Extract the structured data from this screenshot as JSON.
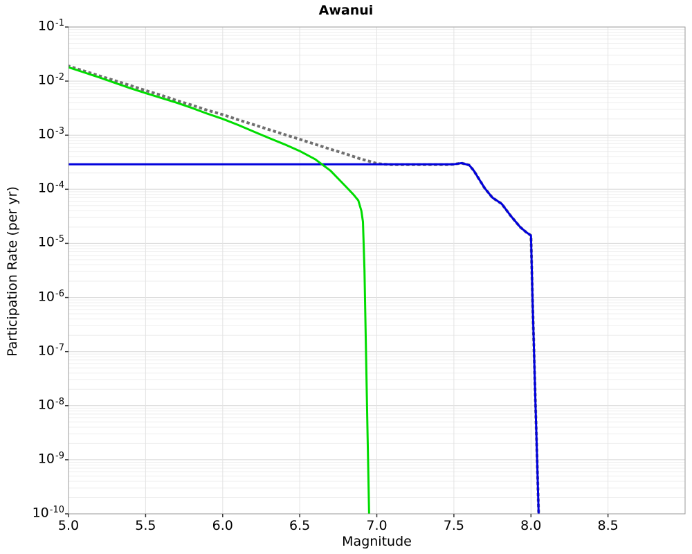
{
  "chart_data": {
    "type": "line",
    "title": "Awanui",
    "xlabel": "Magnitude",
    "ylabel": "Participation Rate (per yr)",
    "xlim": [
      5.0,
      9.0
    ],
    "ylog_exp_range": [
      -1,
      -10
    ],
    "x_ticks": [
      5.0,
      5.5,
      6.0,
      6.5,
      7.0,
      7.5,
      8.0,
      8.5
    ],
    "y_tick_exponents": [
      -1,
      -2,
      -3,
      -4,
      -5,
      -6,
      -7,
      -8,
      -9,
      -10
    ],
    "grid": true,
    "legend_position": "none",
    "colors": {
      "plot_bg": "#ffffff",
      "spine": "#9a9a9a",
      "grid_major": "#d6d6d6",
      "grid_minor": "#eeeeee",
      "grid_vertical": "#e3e3e3",
      "tick": "#333333",
      "text": "#000000"
    },
    "series": [
      {
        "name": "dotted-gray",
        "style": "dotted",
        "color": "#6f6f6f",
        "width": 4,
        "x": [
          5.0,
          5.1,
          5.2,
          5.3,
          5.4,
          5.5,
          5.6,
          5.7,
          5.8,
          5.9,
          6.0,
          6.1,
          6.2,
          6.3,
          6.4,
          6.5,
          6.6,
          6.7,
          6.8,
          6.9,
          6.95,
          7.0,
          7.05,
          7.1,
          7.2,
          7.3,
          7.4,
          7.45,
          7.5,
          7.55,
          7.6,
          7.63,
          7.66,
          7.7,
          7.75,
          7.81,
          7.87,
          7.93,
          7.97,
          8.0,
          8.01,
          8.02,
          8.03,
          8.04,
          8.05
        ],
        "y": [
          0.019,
          0.0154,
          0.0125,
          0.0102,
          0.0083,
          0.0067,
          0.0055,
          0.0044,
          0.0036,
          0.0029,
          0.0024,
          0.00193,
          0.00157,
          0.00127,
          0.00103,
          0.00084,
          0.00068,
          0.00055,
          0.00045,
          0.00036,
          0.00033,
          0.0003,
          0.00029,
          0.000285,
          0.000285,
          0.000285,
          0.000285,
          0.000285,
          0.00029,
          0.000305,
          0.00028,
          0.00022,
          0.00016,
          0.000105,
          7e-05,
          5.4e-05,
          3.2e-05,
          2e-05,
          1.6e-05,
          1.4e-05,
          1e-06,
          1e-07,
          1e-08,
          1e-09,
          1e-10
        ]
      },
      {
        "name": "blue-solid",
        "style": "solid",
        "color": "#0000dd",
        "width": 3,
        "x": [
          5.0,
          7.45,
          7.5,
          7.55,
          7.6,
          7.63,
          7.66,
          7.7,
          7.75,
          7.81,
          7.87,
          7.93,
          7.97,
          8.0,
          8.01,
          8.02,
          8.03,
          8.04,
          8.05
        ],
        "y": [
          0.00029,
          0.00029,
          0.00029,
          0.000305,
          0.00028,
          0.00022,
          0.00016,
          0.000105,
          7e-05,
          5.4e-05,
          3.2e-05,
          2e-05,
          1.6e-05,
          1.4e-05,
          1e-06,
          1e-07,
          1e-08,
          1e-09,
          1e-10
        ]
      },
      {
        "name": "green-solid",
        "style": "solid",
        "color": "#00dc00",
        "width": 3,
        "x": [
          5.0,
          5.1,
          5.2,
          5.3,
          5.4,
          5.5,
          5.6,
          5.7,
          5.8,
          5.9,
          6.0,
          6.1,
          6.2,
          6.3,
          6.4,
          6.5,
          6.6,
          6.7,
          6.8,
          6.85,
          6.88,
          6.9,
          6.91,
          6.92,
          6.93,
          6.94,
          6.95
        ],
        "y": [
          0.018,
          0.0145,
          0.0117,
          0.0093,
          0.0074,
          0.006,
          0.0049,
          0.004,
          0.0032,
          0.0025,
          0.002,
          0.00155,
          0.00117,
          0.00089,
          0.00068,
          0.00051,
          0.00036,
          0.00022,
          0.000112,
          7.9e-05,
          6.2e-05,
          4e-05,
          2.5e-05,
          3.2e-06,
          1e-07,
          3.2e-09,
          1e-10
        ]
      }
    ]
  }
}
